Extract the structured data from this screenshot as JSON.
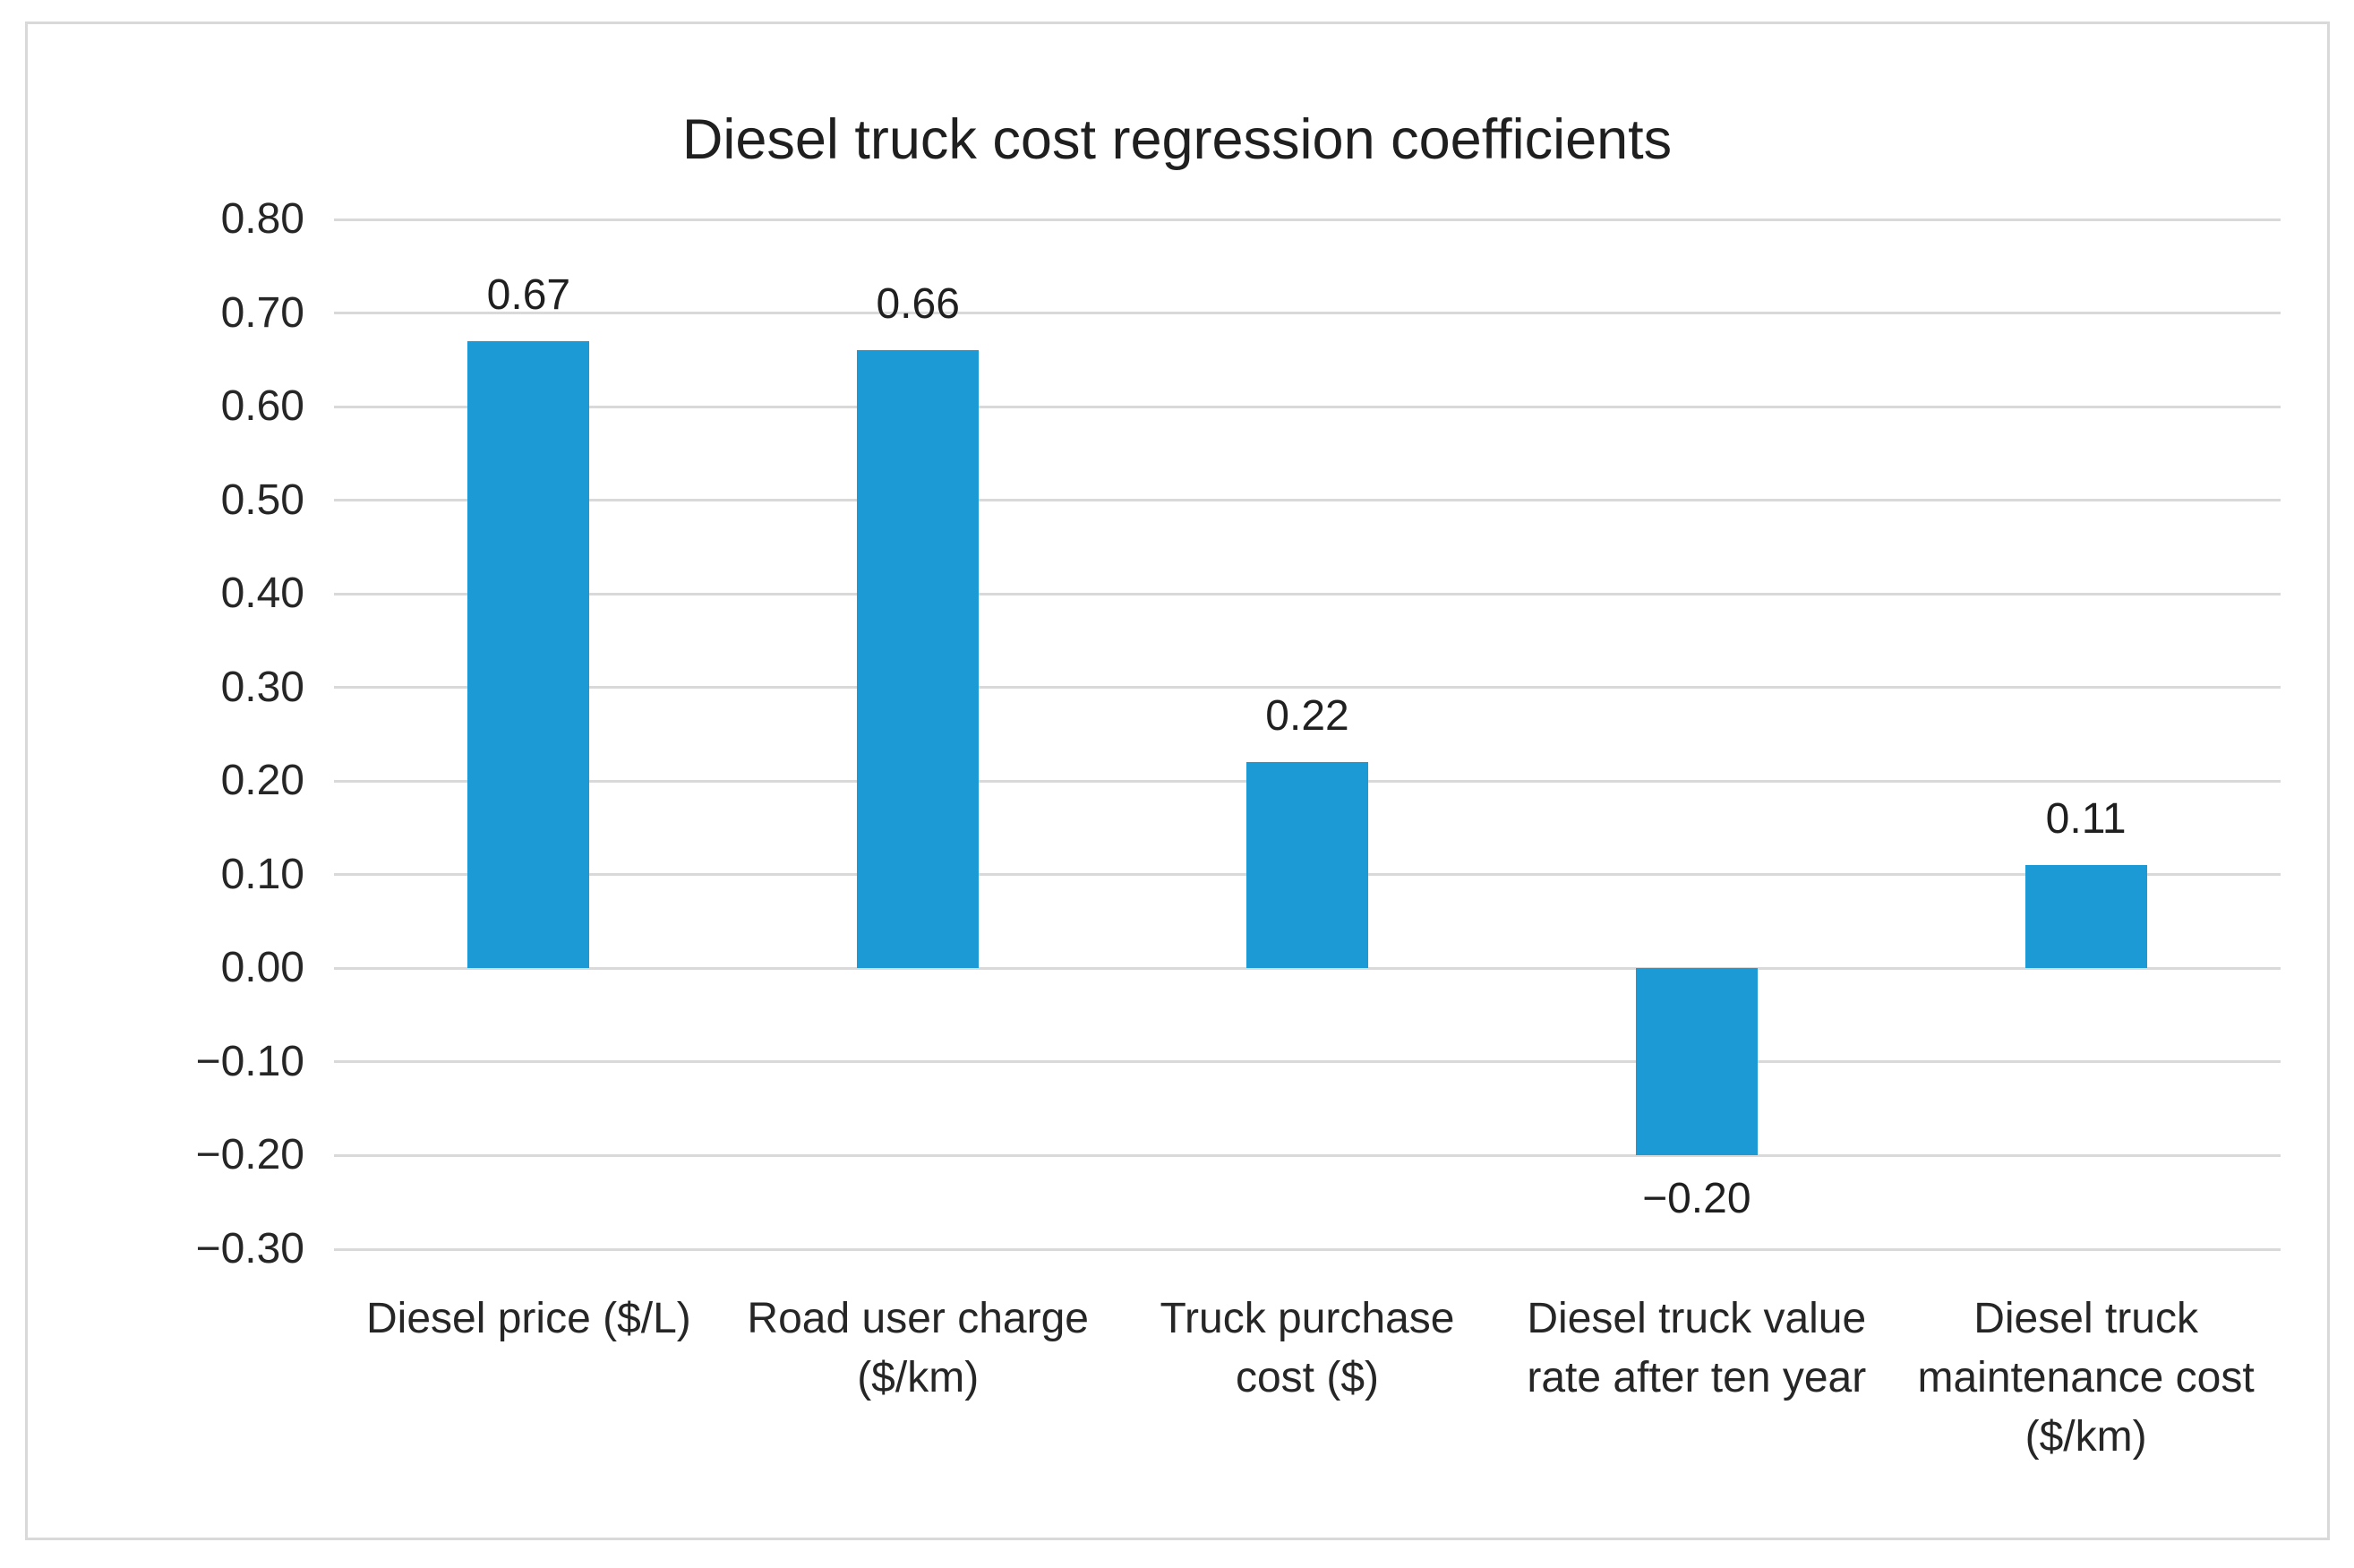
{
  "title": "Diesel truck cost regression coefficients",
  "chart_data": {
    "type": "bar",
    "title": "Diesel truck cost regression coefficients",
    "categories": [
      "Diesel price ($/L)",
      "Road user charge\n($/km)",
      "Truck purchase\ncost ($)",
      "Diesel truck value\nrate after ten year",
      "Diesel truck\nmaintenance cost\n($/km)"
    ],
    "values": [
      0.67,
      0.66,
      0.22,
      -0.2,
      0.11
    ],
    "data_labels": [
      "0.67",
      "0.66",
      "0.22",
      "−0.20",
      "0.11"
    ],
    "xlabel": "",
    "ylabel": "",
    "ylim": [
      -0.3,
      0.8
    ],
    "ytick_step": 0.1,
    "ytick_labels": [
      "0.80",
      "0.70",
      "0.60",
      "0.50",
      "0.40",
      "0.30",
      "0.20",
      "0.10",
      "0.00",
      "−0.10",
      "−0.20",
      "−0.30"
    ],
    "grid": true,
    "legend_position": "none",
    "colors": {
      "bar": "#1b9ad6",
      "grid": "#d9d9d9",
      "text": "#262626",
      "frame_border": "#d9d9d9",
      "background": "#ffffff"
    }
  }
}
